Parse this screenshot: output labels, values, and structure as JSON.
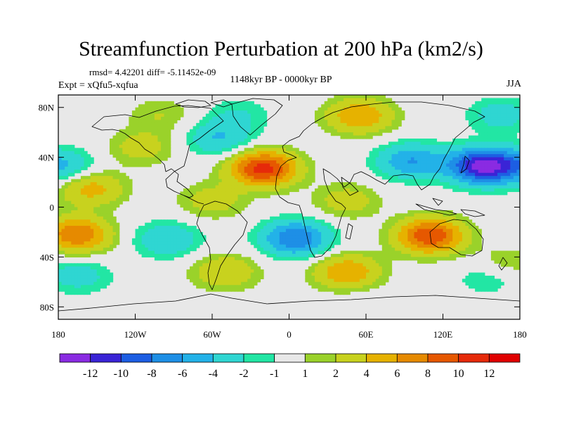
{
  "chart_data": {
    "type": "heatmap",
    "title": "Streamfunction Perturbation at 200 hPa (km2/s)",
    "stats_text": "rmsd= 4.42201 diff= -5.11452e-09",
    "experiment_text": "Expt = xQfu5-xqfua",
    "period_text": "1148kyr BP - 0000kyr BP",
    "season": "JJA",
    "x_range": [
      -180,
      180
    ],
    "y_range": [
      -90,
      90
    ],
    "x_tick_values": [
      -180,
      -120,
      -60,
      0,
      60,
      120,
      180
    ],
    "x_tick_labels": [
      "180",
      "120W",
      "60W",
      "0",
      "60E",
      "120E",
      "180"
    ],
    "y_tick_values": [
      80,
      40,
      0,
      -40,
      -80
    ],
    "y_tick_labels": [
      "80N",
      "40N",
      "0",
      "40S",
      "80S"
    ],
    "colorbar_levels": [
      -12,
      -10,
      -8,
      -6,
      -4,
      -2,
      -1,
      1,
      2,
      4,
      6,
      8,
      10,
      12
    ],
    "colorbar_labels": [
      "-12",
      "-10",
      "-8",
      "-6",
      "-4",
      "-2",
      "-1",
      "1",
      "2",
      "4",
      "6",
      "8",
      "10",
      "12"
    ],
    "colorbar_colors": [
      "#8a2be2",
      "#3a24d6",
      "#1d5ee3",
      "#1e8fe6",
      "#23b2e8",
      "#2fd6d2",
      "#22e6a4",
      "#e8e8e8",
      "#9ad22a",
      "#c8d21e",
      "#e6b200",
      "#e68a00",
      "#e65800",
      "#e62a0a",
      "#e00000"
    ],
    "blobs": [
      {
        "lon": -180,
        "lat": 33,
        "value": -5
      },
      {
        "lon": 180,
        "lat": 33,
        "value": -5
      },
      {
        "lon": -155,
        "lat": 15,
        "value": 5
      },
      {
        "lon": -115,
        "lat": 48,
        "value": 3
      },
      {
        "lon": -100,
        "lat": 74,
        "value": 2
      },
      {
        "lon": -40,
        "lat": 74,
        "value": -2
      },
      {
        "lon": -55,
        "lat": 55,
        "value": -4
      },
      {
        "lon": -20,
        "lat": 31,
        "value": 11
      },
      {
        "lon": 55,
        "lat": 73,
        "value": 6
      },
      {
        "lon": 165,
        "lat": 74,
        "value": -3
      },
      {
        "lon": 95,
        "lat": 37,
        "value": -6
      },
      {
        "lon": 150,
        "lat": 33,
        "value": -12
      },
      {
        "lon": 45,
        "lat": 5,
        "value": 3
      },
      {
        "lon": -60,
        "lat": 5,
        "value": 3
      },
      {
        "lon": -165,
        "lat": -22,
        "value": 8
      },
      {
        "lon": -95,
        "lat": -26,
        "value": -4
      },
      {
        "lon": 5,
        "lat": -25,
        "value": -8
      },
      {
        "lon": 110,
        "lat": -23,
        "value": 10
      },
      {
        "lon": 170,
        "lat": -45,
        "value": 2
      },
      {
        "lon": -165,
        "lat": -55,
        "value": -3
      },
      {
        "lon": -50,
        "lat": -52,
        "value": 4
      },
      {
        "lon": 45,
        "lat": -52,
        "value": 6
      },
      {
        "lon": 155,
        "lat": -57,
        "value": -2
      },
      {
        "lon": 60,
        "lat": -80,
        "value": -1
      }
    ]
  }
}
